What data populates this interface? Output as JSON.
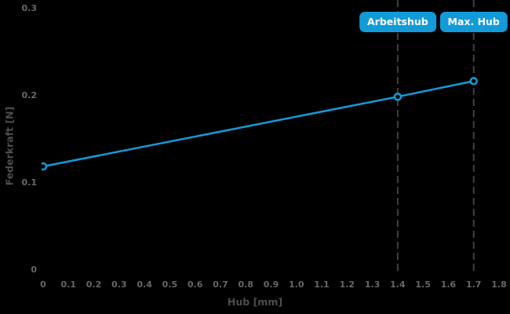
{
  "chart_data": {
    "type": "line",
    "title": "",
    "xlabel": "Hub [mm]",
    "ylabel": "Federkraft [N]",
    "xlim": [
      0,
      1.8
    ],
    "ylim": [
      0,
      0.3
    ],
    "grid": false,
    "legend": "none",
    "x_ticks": [
      {
        "value": 0,
        "label": "0"
      },
      {
        "value": 0.1,
        "label": "0.1"
      },
      {
        "value": 0.2,
        "label": "0.2"
      },
      {
        "value": 0.3,
        "label": "0.3"
      },
      {
        "value": 0.4,
        "label": "0.4"
      },
      {
        "value": 0.5,
        "label": "0.5"
      },
      {
        "value": 0.6,
        "label": "0.6"
      },
      {
        "value": 0.7,
        "label": "0.7"
      },
      {
        "value": 0.8,
        "label": "0.8"
      },
      {
        "value": 0.9,
        "label": "0.9"
      },
      {
        "value": 1.0,
        "label": "1.0"
      },
      {
        "value": 1.1,
        "label": "1.1"
      },
      {
        "value": 1.2,
        "label": "1.2"
      },
      {
        "value": 1.3,
        "label": "1.3"
      },
      {
        "value": 1.4,
        "label": "1.4"
      },
      {
        "value": 1.5,
        "label": "1.5"
      },
      {
        "value": 1.6,
        "label": "1.6"
      },
      {
        "value": 1.7,
        "label": "1.7"
      },
      {
        "value": 1.8,
        "label": "1.8"
      }
    ],
    "y_ticks": [
      {
        "value": 0,
        "label": "0"
      },
      {
        "value": 0.1,
        "label": "0.1"
      },
      {
        "value": 0.2,
        "label": "0.2"
      },
      {
        "value": 0.3,
        "label": "0.3"
      }
    ],
    "series": [
      {
        "name": "Federkraft",
        "color": "#129bd8",
        "marker": "open-circle",
        "points": [
          {
            "x": 0,
            "y": 0.118
          },
          {
            "x": 1.4,
            "y": 0.198
          },
          {
            "x": 1.7,
            "y": 0.216
          }
        ]
      }
    ],
    "annotations": [
      {
        "label": "Arbeitshub",
        "x": 1.4,
        "line_style": "dashed"
      },
      {
        "label": "Max. Hub",
        "x": 1.7,
        "line_style": "dashed"
      }
    ],
    "colors": {
      "background": "#000000",
      "line": "#129bd8",
      "badge_fill": "#129bd8",
      "badge_text": "#ffffff",
      "dashed_line": "#3f3f3f",
      "tick_text": "#676767",
      "axis_title_text": "#4e4e4e"
    }
  }
}
